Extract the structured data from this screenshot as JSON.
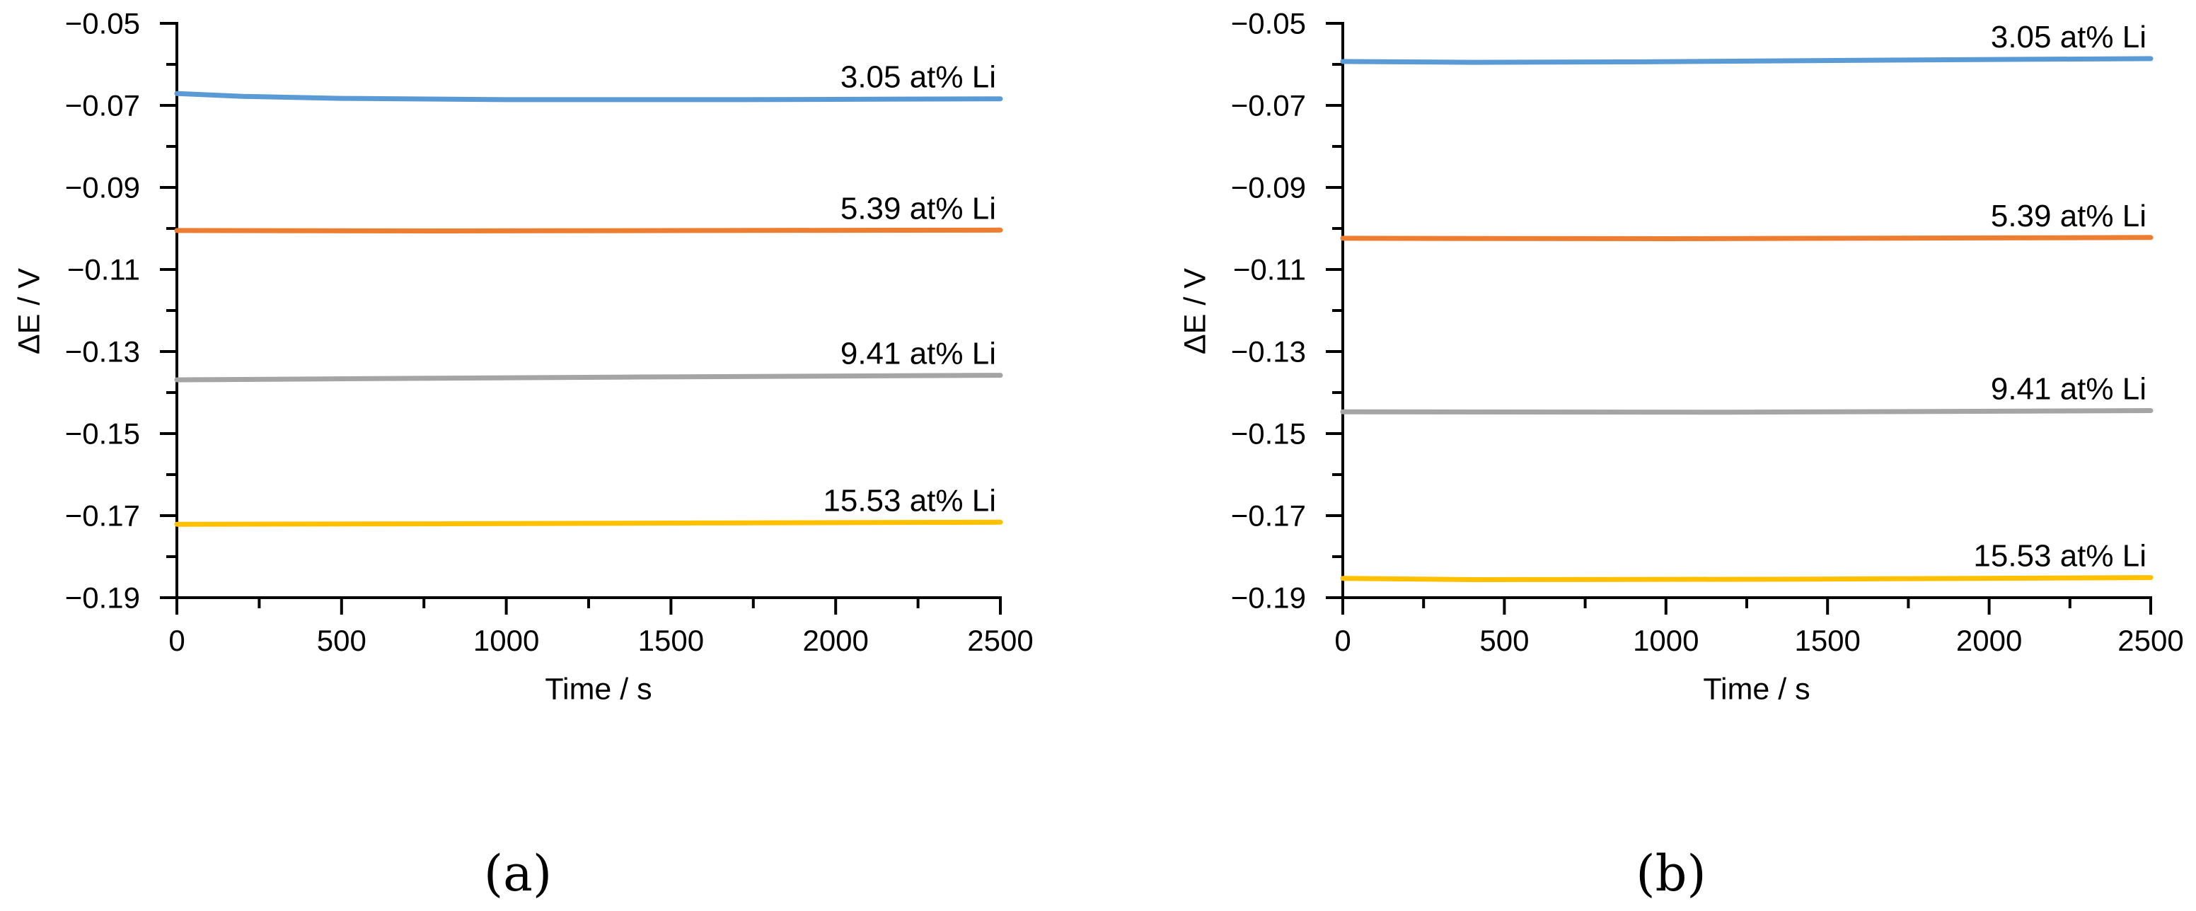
{
  "chart_data": [
    {
      "type": "line",
      "caption": "(a)",
      "xlabel": "Time / s",
      "ylabel": "ΔE / V",
      "xlim": [
        0,
        2500
      ],
      "ylim": [
        -0.19,
        -0.05
      ],
      "grid": false,
      "legend_position": "end-of-line-labels",
      "x_minor_step": 250,
      "y_minor_step": 0.01,
      "xticks": [
        {
          "value": 0,
          "label": "0"
        },
        {
          "value": 500,
          "label": "500"
        },
        {
          "value": 1000,
          "label": "1000"
        },
        {
          "value": 1500,
          "label": "1500"
        },
        {
          "value": 2000,
          "label": "2000"
        },
        {
          "value": 2500,
          "label": "2500"
        }
      ],
      "yticks": [
        {
          "value": -0.05,
          "label": "−0.05"
        },
        {
          "value": -0.07,
          "label": "−0.07"
        },
        {
          "value": -0.09,
          "label": "−0.09"
        },
        {
          "value": -0.11,
          "label": "−0.11"
        },
        {
          "value": -0.13,
          "label": "−0.13"
        },
        {
          "value": -0.15,
          "label": "−0.15"
        },
        {
          "value": -0.17,
          "label": "−0.17"
        },
        {
          "value": -0.19,
          "label": "−0.19"
        }
      ],
      "series": [
        {
          "name": "3.05 at% Li",
          "color": "#5B9BD5",
          "points": [
            [
              0,
              -0.0671
            ],
            [
              200,
              -0.0678
            ],
            [
              500,
              -0.0683
            ],
            [
              1000,
              -0.0686
            ],
            [
              1700,
              -0.0686
            ],
            [
              2500,
              -0.0684
            ]
          ]
        },
        {
          "name": "5.39 at% Li",
          "color": "#ED7D31",
          "points": [
            [
              0,
              -0.1005
            ],
            [
              800,
              -0.1006
            ],
            [
              1600,
              -0.1005
            ],
            [
              2500,
              -0.1004
            ]
          ]
        },
        {
          "name": "9.41 at% Li",
          "color": "#A5A5A5",
          "points": [
            [
              0,
              -0.1369
            ],
            [
              600,
              -0.1366
            ],
            [
              1400,
              -0.1362
            ],
            [
              2500,
              -0.1358
            ]
          ]
        },
        {
          "name": "15.53 at% Li",
          "color": "#FFC000",
          "points": [
            [
              0,
              -0.1721
            ],
            [
              800,
              -0.172
            ],
            [
              1600,
              -0.1718
            ],
            [
              2500,
              -0.1716
            ]
          ]
        }
      ]
    },
    {
      "type": "line",
      "caption": "(b)",
      "xlabel": "Time / s",
      "ylabel": "ΔE / V",
      "xlim": [
        0,
        2500
      ],
      "ylim": [
        -0.19,
        -0.05
      ],
      "grid": false,
      "legend_position": "end-of-line-labels",
      "x_minor_step": 250,
      "y_minor_step": 0.01,
      "xticks": [
        {
          "value": 0,
          "label": "0"
        },
        {
          "value": 500,
          "label": "500"
        },
        {
          "value": 1000,
          "label": "1000"
        },
        {
          "value": 1500,
          "label": "1500"
        },
        {
          "value": 2000,
          "label": "2000"
        },
        {
          "value": 2500,
          "label": "2500"
        }
      ],
      "yticks": [
        {
          "value": -0.05,
          "label": "−0.05"
        },
        {
          "value": -0.07,
          "label": "−0.07"
        },
        {
          "value": -0.09,
          "label": "−0.09"
        },
        {
          "value": -0.11,
          "label": "−0.11"
        },
        {
          "value": -0.13,
          "label": "−0.13"
        },
        {
          "value": -0.15,
          "label": "−0.15"
        },
        {
          "value": -0.17,
          "label": "−0.17"
        },
        {
          "value": -0.19,
          "label": "−0.19"
        }
      ],
      "series": [
        {
          "name": "3.05 at% Li",
          "color": "#5B9BD5",
          "points": [
            [
              0,
              -0.0593
            ],
            [
              400,
              -0.0595
            ],
            [
              900,
              -0.0594
            ],
            [
              1600,
              -0.059
            ],
            [
              2500,
              -0.0586
            ]
          ]
        },
        {
          "name": "5.39 at% Li",
          "color": "#ED7D31",
          "points": [
            [
              0,
              -0.1024
            ],
            [
              1000,
              -0.1025
            ],
            [
              2500,
              -0.1022
            ]
          ]
        },
        {
          "name": "9.41 at% Li",
          "color": "#A5A5A5",
          "points": [
            [
              0,
              -0.1447
            ],
            [
              1200,
              -0.1448
            ],
            [
              2500,
              -0.1444
            ]
          ]
        },
        {
          "name": "15.53 at% Li",
          "color": "#FFC000",
          "points": [
            [
              0,
              -0.1853
            ],
            [
              400,
              -0.1856
            ],
            [
              1400,
              -0.1855
            ],
            [
              2500,
              -0.1851
            ]
          ]
        }
      ]
    }
  ]
}
